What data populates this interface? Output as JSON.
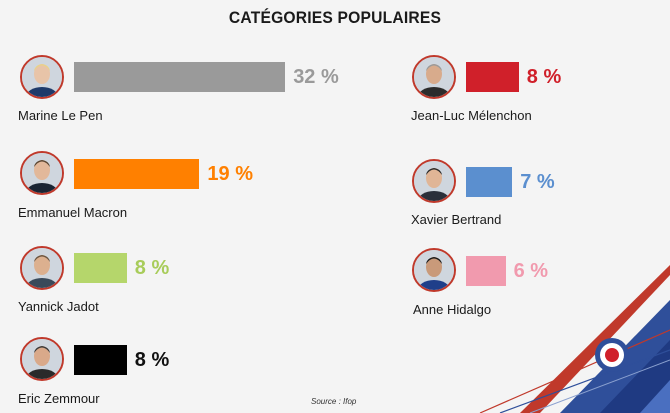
{
  "header": {
    "title": "CATÉGORIES POPULAIRES"
  },
  "source": "Source :  Ifop",
  "chart_data": {
    "type": "bar",
    "title": "CATÉGORIES POPULAIRES",
    "unit": "%",
    "categories": [
      "Marine Le Pen",
      "Emmanuel Macron",
      "Yannick Jadot",
      "Eric Zemmour",
      "Jean-Luc Mélenchon",
      "Xavier Bertrand",
      "Anne Hidalgo"
    ],
    "values": [
      32,
      19,
      8,
      8,
      8,
      7,
      6
    ],
    "labels": [
      "32 %",
      "19 %",
      "8 %",
      "8 %",
      "8 %",
      "7 %",
      "6 %"
    ],
    "colors": [
      "#9a9a9a",
      "#ff8000",
      "#b5d66b",
      "#000000",
      "#d0202a",
      "#5b8fcf",
      "#f19aae"
    ],
    "label_colors": [
      "#9a9a9a",
      "#ff8000",
      "#a8cc5a",
      "#111111",
      "#d0202a",
      "#5b8fcf",
      "#f19aae"
    ]
  }
}
